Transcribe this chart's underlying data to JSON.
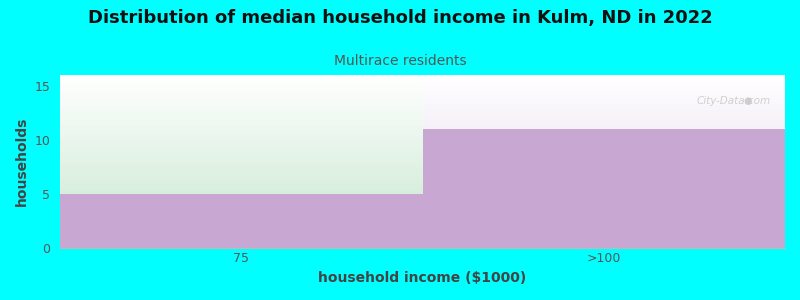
{
  "title": "Distribution of median household income in Kulm, ND in 2022",
  "subtitle": "Multirace residents",
  "xlabel": "household income ($1000)",
  "ylabel": "households",
  "categories": [
    "75",
    ">100"
  ],
  "values": [
    5,
    11
  ],
  "ylim": [
    0,
    16
  ],
  "yticks": [
    0,
    5,
    10,
    15
  ],
  "bar_color": "#c8a8d2",
  "green_top_color": "#d8eedd",
  "green_bottom_color": "#eaf5e8",
  "purple_top_color": "#f5f0f8",
  "background_color": "#00ffff",
  "plot_bg_color": "#ffffff",
  "title_fontsize": 13,
  "subtitle_fontsize": 10,
  "subtitle_color": "#555555",
  "axis_label_fontsize": 10,
  "tick_fontsize": 9,
  "watermark": "City-Data.com",
  "watermark_color": "#c8c8c8",
  "grid_color": "#dddddd",
  "spine_color": "#bbbbbb"
}
